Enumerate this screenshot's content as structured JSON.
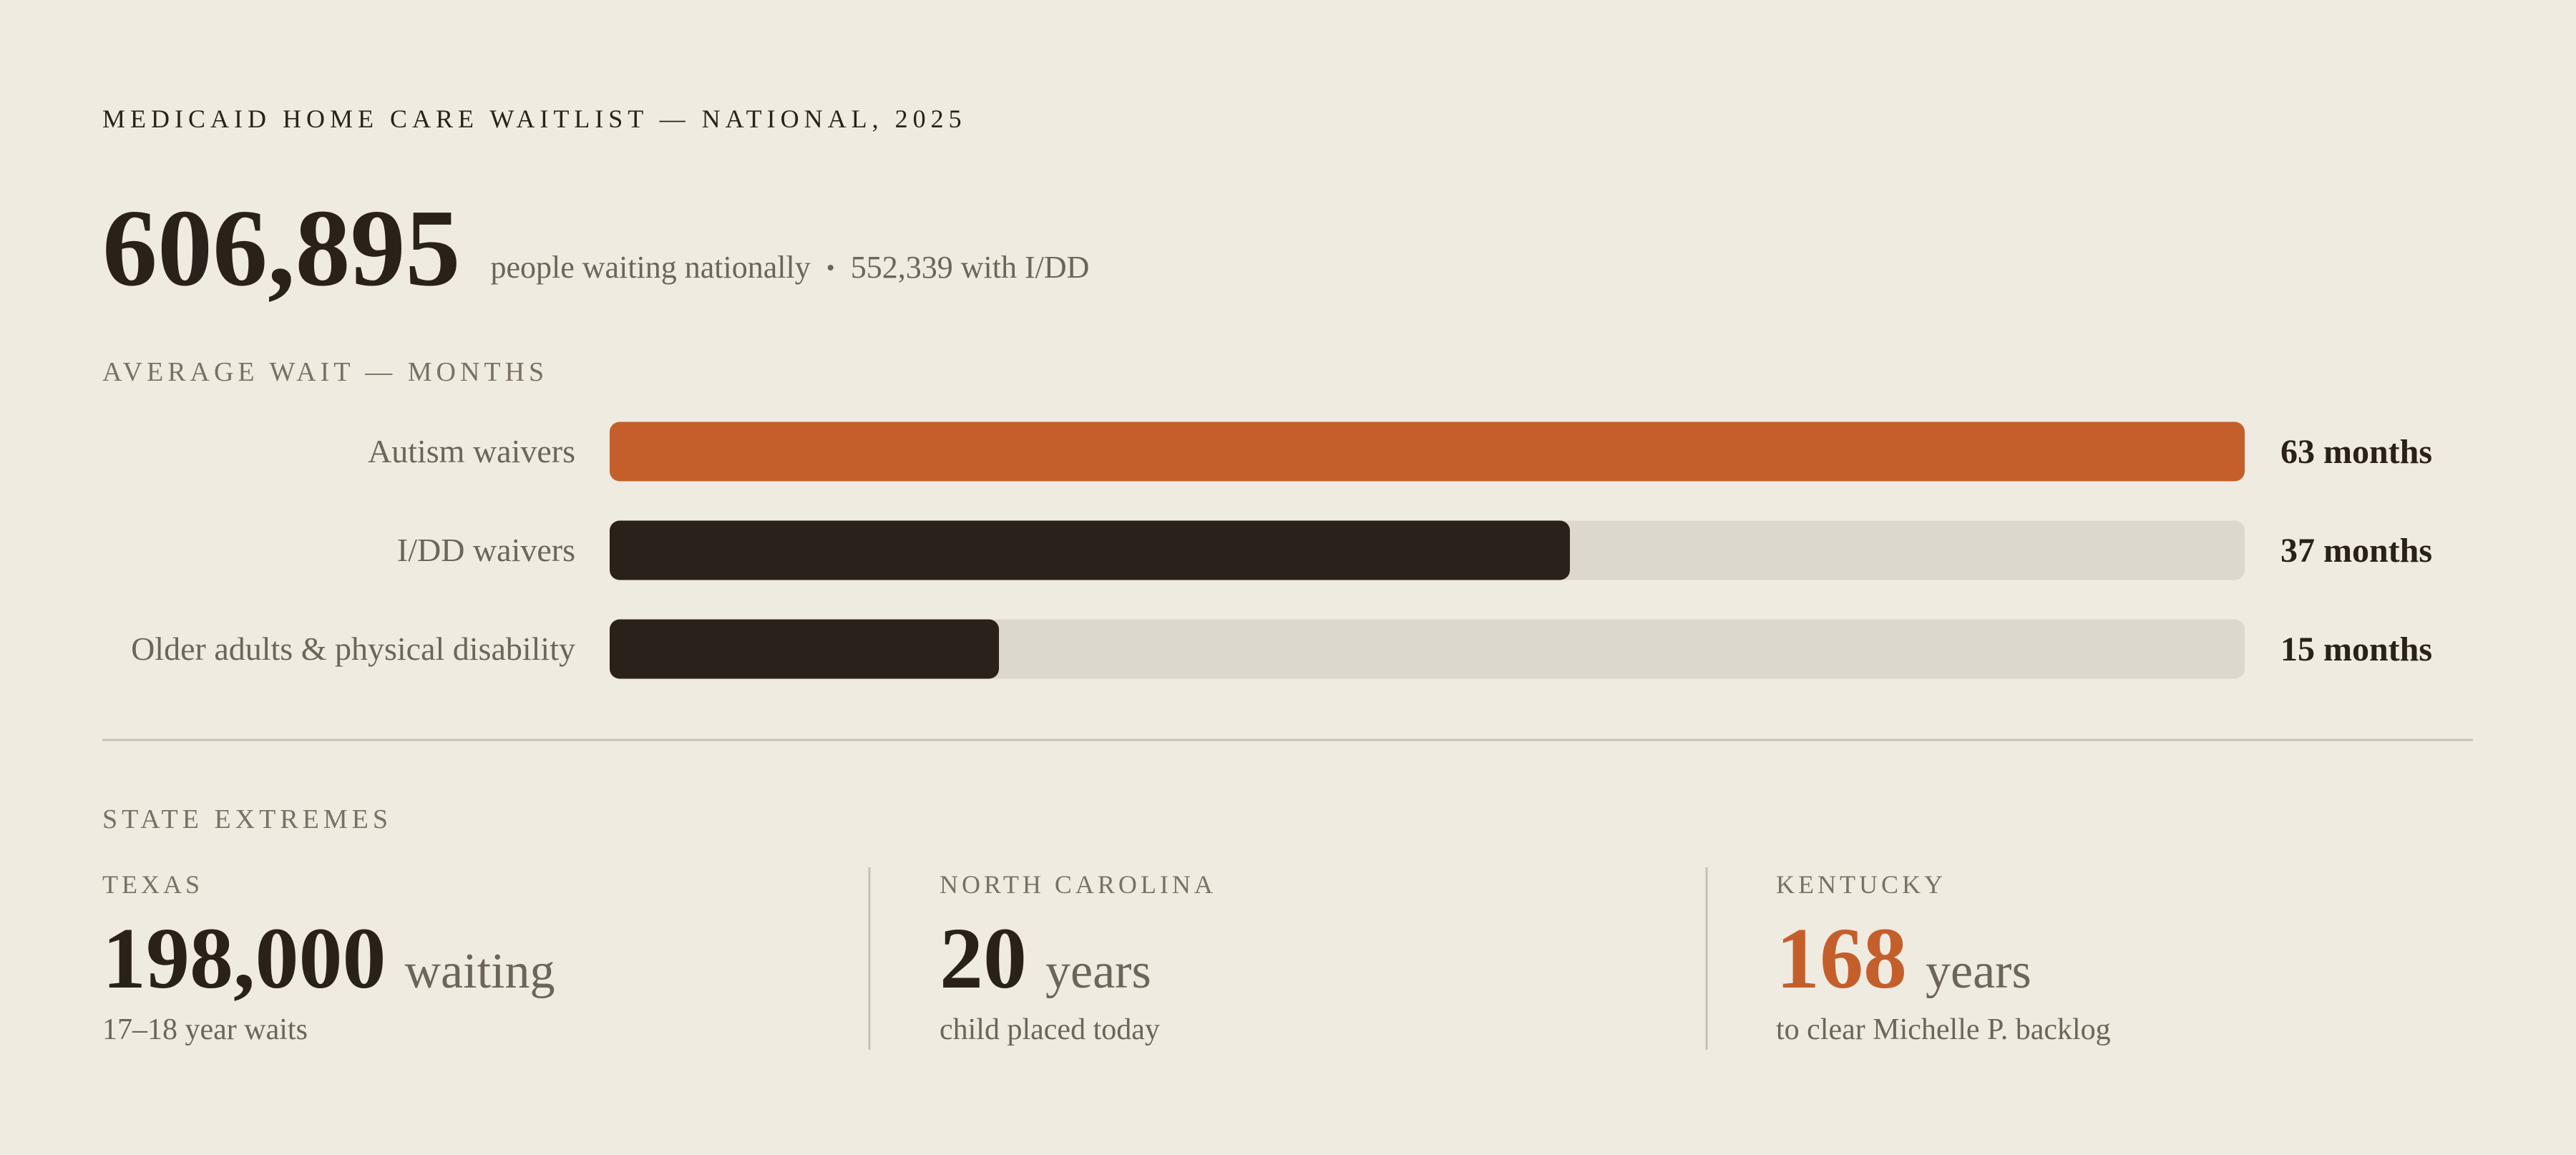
{
  "header": {
    "title": "MEDICAID HOME CARE WAITLIST — NATIONAL, 2025",
    "total": "606,895",
    "total_note": "people waiting nationally",
    "idd_note": "552,339 with I/DD"
  },
  "chart_data": {
    "type": "bar",
    "orientation": "horizontal",
    "title": "AVERAGE WAIT — MONTHS",
    "categories": [
      "Autism waivers",
      "I/DD waivers",
      "Older adults & physical disability"
    ],
    "values": [
      63,
      37,
      15
    ],
    "value_labels": [
      "63 months",
      "37 months",
      "15 months"
    ],
    "colors": [
      "#c45f2c",
      "#2a211a",
      "#2a211a"
    ],
    "track_color": "#dcd8cd"
  },
  "state_extremes": {
    "title": "STATE EXTREMES",
    "cards": [
      {
        "state": "TEXAS",
        "value": "198,000",
        "unit": "waiting",
        "note": "17–18 year waits",
        "color": "#2a211a"
      },
      {
        "state": "NORTH CAROLINA",
        "value": "20",
        "unit": "years",
        "note": "child placed today",
        "color": "#2a211a"
      },
      {
        "state": "KENTUCKY",
        "value": "168",
        "unit": "years",
        "note": "to clear Michelle P. backlog",
        "color": "#c45f2c"
      }
    ]
  }
}
